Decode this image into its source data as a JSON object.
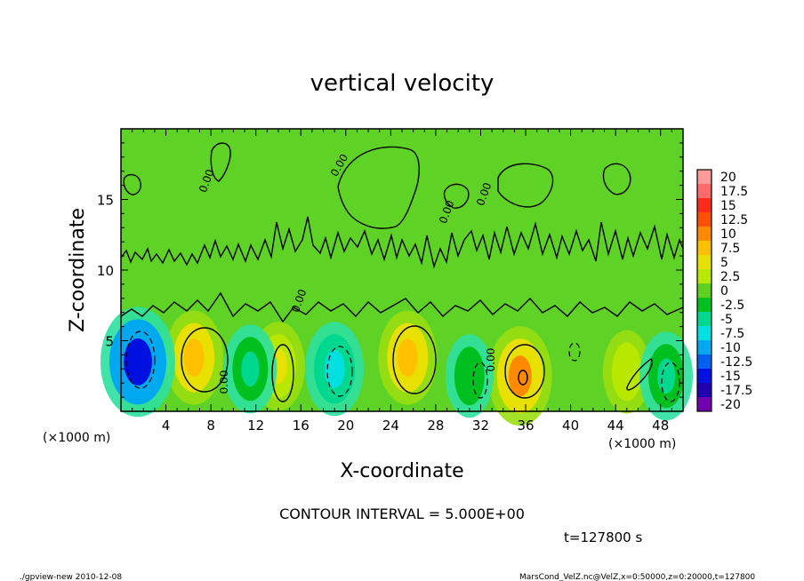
{
  "chart_data": {
    "type": "heatmap",
    "title": "vertical velocity",
    "xlabel": "X-coordinate",
    "ylabel": "Z-coordinate",
    "x_unit": "(×1000 m)",
    "x_unit_right": "(×1000 m)",
    "xlim": [
      0,
      50
    ],
    "ylim": [
      0,
      20
    ],
    "x_ticks": [
      4,
      8,
      12,
      16,
      20,
      24,
      28,
      32,
      36,
      40,
      44,
      48
    ],
    "y_ticks": [
      5,
      10,
      15
    ],
    "contour_labels": [
      "0.00",
      "0.00",
      "0.00",
      "0.00",
      "0.00",
      "0.00",
      "0.00"
    ],
    "colorbar": {
      "labels": [
        "20",
        "17.5",
        "15",
        "12.5",
        "10",
        "7.5",
        "5",
        "2.5",
        "0",
        "-2.5",
        "-5",
        "-7.5",
        "-10",
        "-12.5",
        "-15",
        "-17.5",
        "-20"
      ],
      "colors": [
        "#ff9a9a",
        "#ff6a6a",
        "#ff2a1a",
        "#ff5000",
        "#ff8a00",
        "#ffc000",
        "#e8e000",
        "#b8e800",
        "#60d020",
        "#00c020",
        "#00d890",
        "#00e0e0",
        "#00a8f0",
        "#0060f0",
        "#0010e0",
        "#2000b0",
        "#7000b0"
      ]
    },
    "features": [
      {
        "kind": "updraft",
        "x": 6.5,
        "z": 3.8,
        "peak": 7.5
      },
      {
        "kind": "updraft",
        "x": 14,
        "z": 3.2,
        "peak": 5
      },
      {
        "kind": "updraft",
        "x": 25.5,
        "z": 3.8,
        "peak": 7.5
      },
      {
        "kind": "updraft",
        "x": 35.5,
        "z": 2.5,
        "peak": 10
      },
      {
        "kind": "updraft",
        "x": 45,
        "z": 2.8,
        "peak": 2.5
      },
      {
        "kind": "downdraft",
        "x": 1.5,
        "z": 3.5,
        "peak": -15
      },
      {
        "kind": "downdraft",
        "x": 11.5,
        "z": 3,
        "peak": -5
      },
      {
        "kind": "downdraft",
        "x": 19,
        "z": 3,
        "peak": -7.5
      },
      {
        "kind": "downdraft",
        "x": 31,
        "z": 2.5,
        "peak": -2.5
      },
      {
        "kind": "downdraft",
        "x": 48.5,
        "z": 2.5,
        "peak": -5
      }
    ]
  },
  "annotations": {
    "contour_interval": "CONTOUR INTERVAL = 5.000E+00",
    "time": "t=127800 s",
    "footer_left": "./gpview-new  2010-12-08",
    "footer_right": "MarsCond_VelZ.nc@VelZ,x=0:50000,z=0:20000,t=127800"
  }
}
